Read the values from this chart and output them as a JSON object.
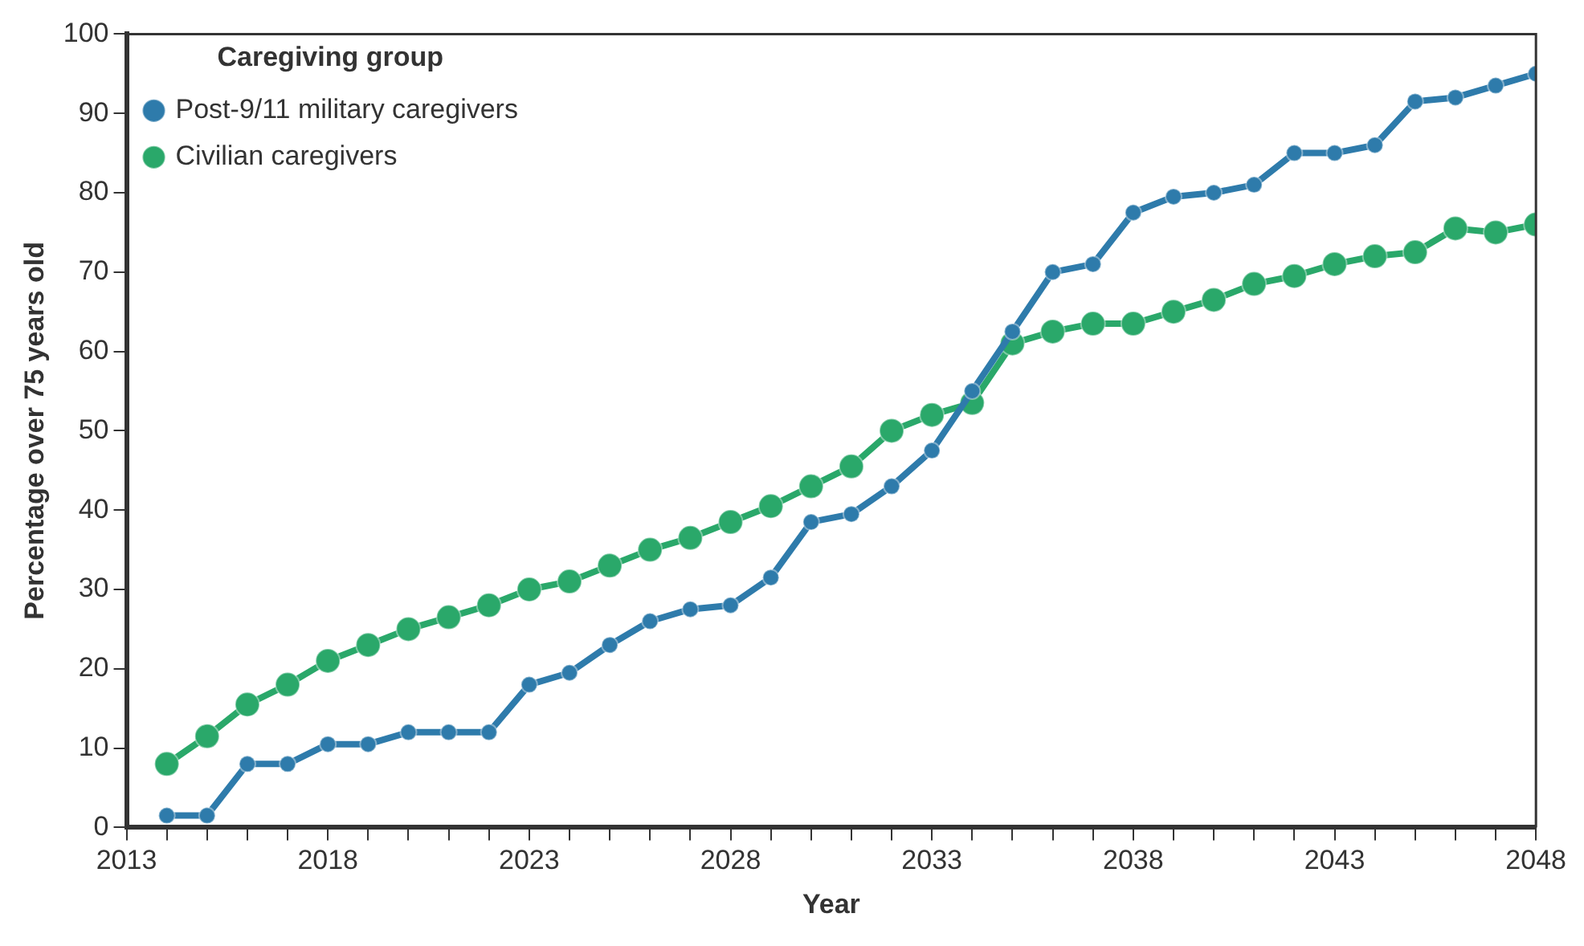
{
  "chart_data": {
    "type": "line",
    "xlabel": "Year",
    "ylabel": "Percentage over 75 years old",
    "legend_title": "Caregiving group",
    "x": [
      2014,
      2015,
      2016,
      2017,
      2018,
      2019,
      2020,
      2021,
      2022,
      2023,
      2024,
      2025,
      2026,
      2027,
      2028,
      2029,
      2030,
      2031,
      2032,
      2033,
      2034,
      2035,
      2036,
      2037,
      2038,
      2039,
      2040,
      2041,
      2042,
      2043,
      2044,
      2045,
      2046,
      2047,
      2048
    ],
    "series": [
      {
        "name": "Post-9/11 military caregivers",
        "color": "#2e7bab",
        "values": [
          1.5,
          1.5,
          8,
          8,
          10.5,
          10.5,
          12,
          12,
          12,
          18,
          19.5,
          23,
          26,
          27.5,
          28,
          31.5,
          38.5,
          39.5,
          43,
          47.5,
          55,
          62.5,
          70,
          71,
          77.5,
          79.5,
          80,
          81,
          85,
          85,
          86,
          91.5,
          92,
          93.5,
          95
        ]
      },
      {
        "name": "Civilian caregivers",
        "color": "#2aa86a",
        "values": [
          8,
          11.5,
          15.5,
          18,
          21,
          23,
          25,
          26.5,
          28,
          30,
          31,
          33,
          35,
          36.5,
          38.5,
          40.5,
          43,
          45.5,
          50,
          52,
          53.5,
          61,
          62.5,
          63.5,
          63.5,
          65,
          66.5,
          68.5,
          69.5,
          71,
          72,
          72.5,
          75.5,
          75,
          76
        ]
      }
    ],
    "xlim": [
      2013,
      2048
    ],
    "xticks": [
      2013,
      {
        "value": 2014,
        "label": null
      },
      {
        "value": 2015,
        "label": null
      },
      {
        "value": 2016,
        "label": null
      },
      {
        "value": 2017,
        "label": null
      },
      2018,
      {
        "value": 2019,
        "label": null
      },
      {
        "value": 2020,
        "label": null
      },
      {
        "value": 2021,
        "label": null
      },
      {
        "value": 2022,
        "label": null
      },
      2023,
      {
        "value": 2024,
        "label": null
      },
      {
        "value": 2025,
        "label": null
      },
      {
        "value": 2026,
        "label": null
      },
      {
        "value": 2027,
        "label": null
      },
      2028,
      {
        "value": 2029,
        "label": null
      },
      {
        "value": 2030,
        "label": null
      },
      {
        "value": 2031,
        "label": null
      },
      {
        "value": 2032,
        "label": null
      },
      2033,
      {
        "value": 2034,
        "label": null
      },
      {
        "value": 2035,
        "label": null
      },
      {
        "value": 2036,
        "label": null
      },
      {
        "value": 2037,
        "label": null
      },
      2038,
      {
        "value": 2039,
        "label": null
      },
      {
        "value": 2040,
        "label": null
      },
      {
        "value": 2041,
        "label": null
      },
      {
        "value": 2042,
        "label": null
      },
      2043,
      {
        "value": 2044,
        "label": null
      },
      {
        "value": 2045,
        "label": null
      },
      {
        "value": 2046,
        "label": null
      },
      {
        "value": 2047,
        "label": null
      },
      2048
    ],
    "ylim": [
      0,
      100
    ],
    "yticks": [
      0,
      10,
      20,
      30,
      40,
      50,
      60,
      70,
      80,
      90,
      100
    ],
    "grid": false,
    "legend": "top left",
    "marker": "circle",
    "line_style": "solid"
  }
}
